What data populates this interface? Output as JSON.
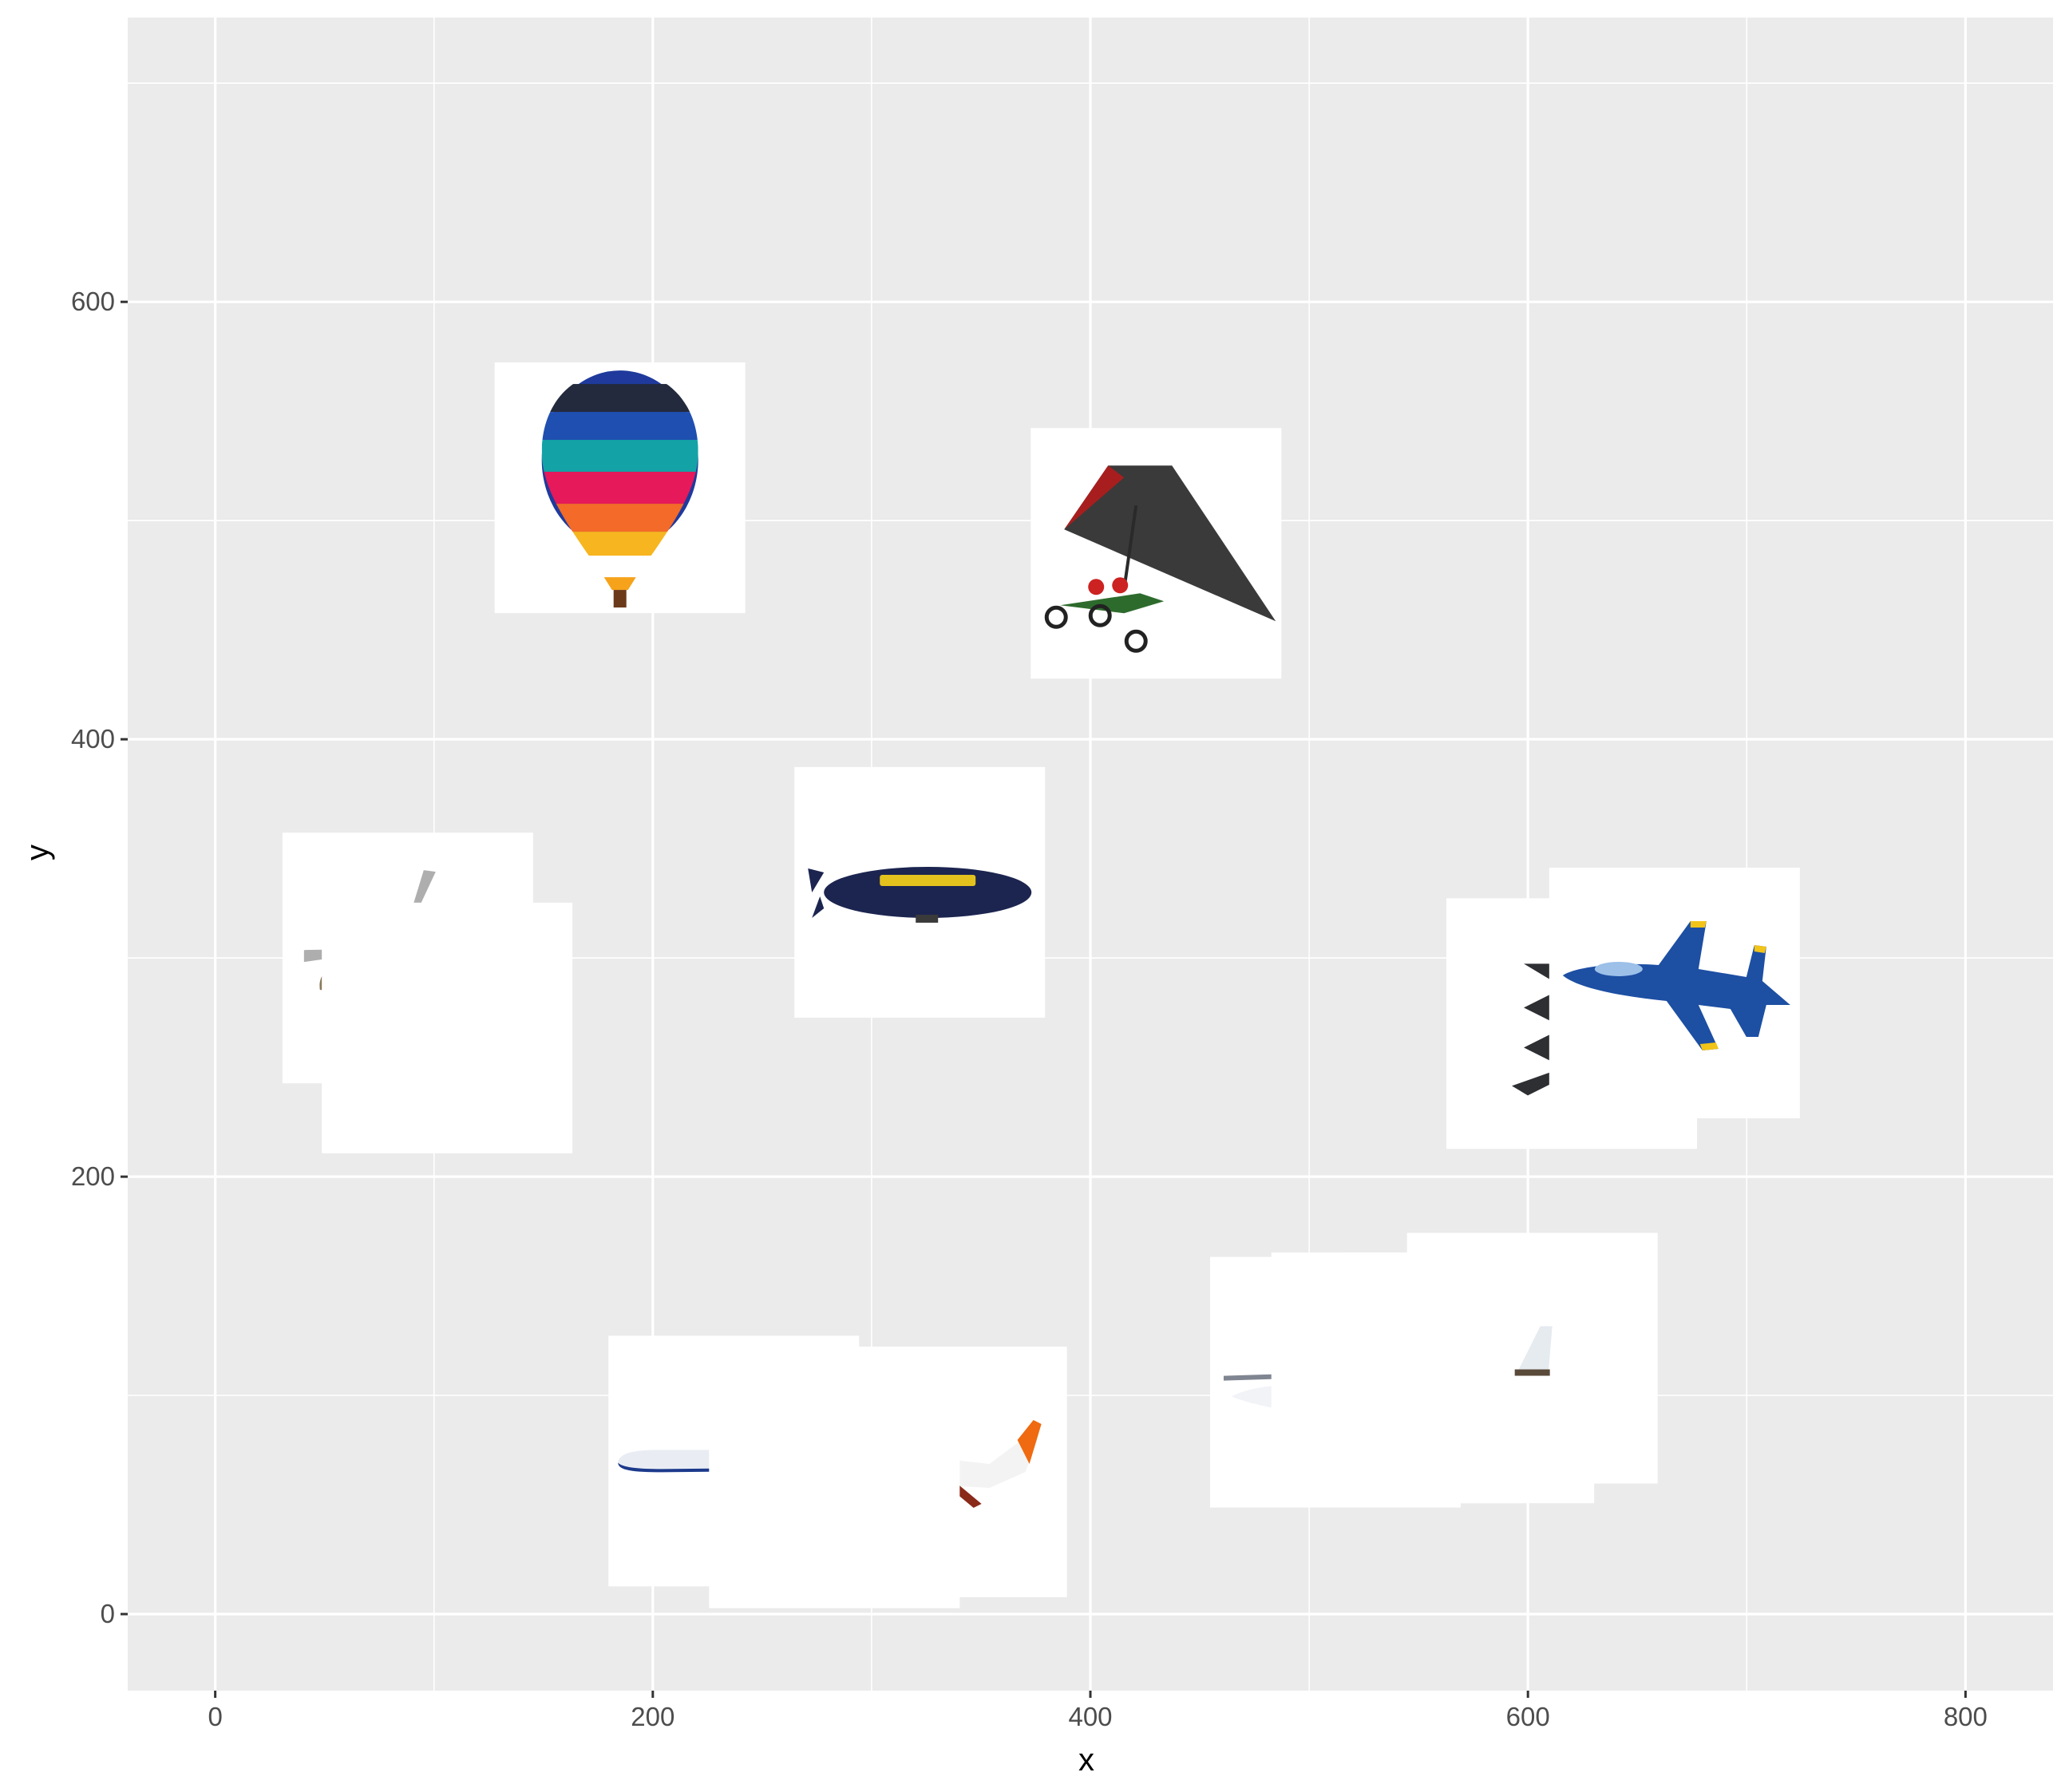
{
  "chart_data": {
    "type": "scatter",
    "title": "",
    "xlabel": "x",
    "ylabel": "y",
    "xlim": [
      -40,
      840
    ],
    "ylim": [
      -35,
      730
    ],
    "x_ticks": [
      0,
      200,
      400,
      600,
      800
    ],
    "y_ticks": [
      0,
      200,
      400,
      600
    ],
    "x_minor": [
      100,
      300,
      500,
      700
    ],
    "y_minor": [
      100,
      300,
      500,
      700
    ],
    "grid": true,
    "panel_background": "#ebebeb",
    "grid_color": "#ffffff",
    "points": [
      {
        "x": 185,
        "y": 515,
        "icon": "hot-air-balloon-icon",
        "kind": "balloon"
      },
      {
        "x": 430,
        "y": 485,
        "icon": "ultralight-trike-icon",
        "kind": "trike"
      },
      {
        "x": 322,
        "y": 330,
        "icon": "blimp-icon",
        "kind": "blimp"
      },
      {
        "x": 88,
        "y": 300,
        "icon": "military-helicopter-icon",
        "kind": "helicopter"
      },
      {
        "x": 106,
        "y": 268,
        "icon": "white-tile-icon",
        "kind": "blank"
      },
      {
        "x": 620,
        "y": 270,
        "icon": "stealth-bomber-icon",
        "kind": "bomber"
      },
      {
        "x": 667,
        "y": 284,
        "icon": "fighter-jet-icon",
        "kind": "fighter"
      },
      {
        "x": 237,
        "y": 70,
        "icon": "passenger-jet-icon",
        "kind": "airliner"
      },
      {
        "x": 332,
        "y": 65,
        "icon": "orange-tail-airliner-icon",
        "kind": "airliner2"
      },
      {
        "x": 283,
        "y": 60,
        "icon": "white-tile-icon",
        "kind": "blank"
      },
      {
        "x": 512,
        "y": 106,
        "icon": "cessna-plane-icon",
        "kind": "cessna"
      },
      {
        "x": 540,
        "y": 108,
        "icon": "white-tile-icon",
        "kind": "blank"
      },
      {
        "x": 573,
        "y": 108,
        "icon": "small-tail-fin-icon",
        "kind": "tailfin"
      },
      {
        "x": 602,
        "y": 117,
        "icon": "small-tail-fin-icon",
        "kind": "tailfin2"
      }
    ]
  }
}
